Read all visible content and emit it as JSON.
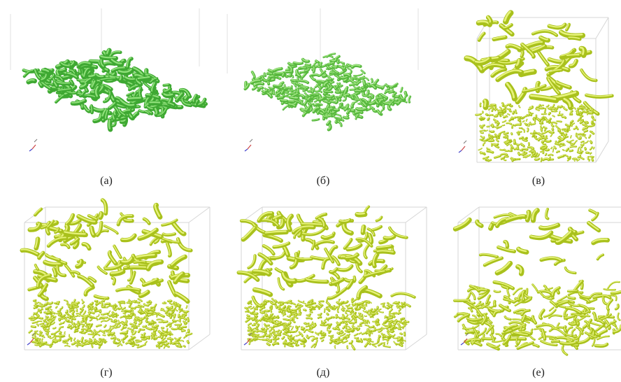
{
  "panels": [
    {
      "caption": "(а)"
    },
    {
      "caption": "(б)"
    },
    {
      "caption": "(в)"
    },
    {
      "caption": "(г)"
    },
    {
      "caption": "(д)"
    },
    {
      "caption": "(е)"
    }
  ]
}
